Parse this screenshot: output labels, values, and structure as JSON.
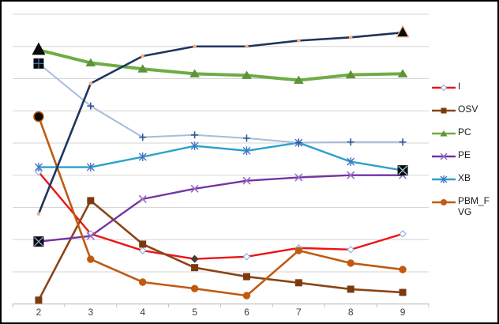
{
  "figure": {
    "background": "#FFFFFF",
    "border_color": "#000000"
  },
  "chart_data": {
    "type": "line",
    "title": "",
    "xlabel": "",
    "ylabel": "",
    "x": [
      2,
      3,
      4,
      5,
      6,
      7,
      8,
      9
    ],
    "x_tick_labels": [
      "2",
      "3",
      "4",
      "5",
      "6",
      "7",
      "8",
      "9"
    ],
    "ylim": [
      0,
      9
    ],
    "y_axis_labels_visible": false,
    "grid": true,
    "gridline_color": "#D6D6D6",
    "axis_color": "#BFBFBF",
    "tick_label_color": "#3F3F3F",
    "legend_position": "right",
    "legend_text_color": "#1A1A1A",
    "series": [
      {
        "name": "I",
        "color": "#ED1414",
        "width": 2.4,
        "marker": "diamond-open",
        "marker_color": "#8FAADC",
        "values": [
          4.1,
          2.18,
          1.66,
          1.4,
          1.47,
          1.74,
          1.69,
          2.18
        ]
      },
      {
        "name": "OSV",
        "color": "#8A4517",
        "width": 2.6,
        "marker": "square",
        "marker_color": "#7B3A0E",
        "values": [
          0.12,
          3.21,
          1.86,
          1.13,
          0.85,
          0.66,
          0.46,
          0.36
        ]
      },
      {
        "name": "PC",
        "color": "#6FAC46",
        "width": 4.0,
        "marker": "triangle",
        "marker_color": "#5E9438",
        "values": [
          7.89,
          7.49,
          7.3,
          7.15,
          7.1,
          6.95,
          7.12,
          7.15
        ]
      },
      {
        "name": "PE",
        "color": "#7434A4",
        "width": 2.4,
        "marker": "x",
        "marker_color": "#9A6DC0",
        "values": [
          1.94,
          2.11,
          3.26,
          3.58,
          3.83,
          3.93,
          4.0,
          4.0
        ]
      },
      {
        "name": "XB",
        "color": "#2BA0CC",
        "width": 2.4,
        "marker": "star",
        "marker_color": "#4472C4",
        "values": [
          4.25,
          4.25,
          4.57,
          4.91,
          4.76,
          5.01,
          4.42,
          4.15
        ]
      },
      {
        "name": "PBM_FVG",
        "color": "#C05A11",
        "width": 2.6,
        "marker": "circle",
        "marker_color": "#C05A11",
        "values": [
          5.82,
          1.39,
          0.68,
          0.48,
          0.26,
          1.66,
          1.27,
          1.07
        ]
      },
      {
        "name": "(unlabeled light blue)",
        "in_legend": false,
        "color": "#A6BDDC",
        "width": 2.0,
        "marker": "plus",
        "marker_color": "#2E5596",
        "values": [
          7.47,
          6.15,
          5.18,
          5.25,
          5.15,
          5.01,
          5.03,
          5.03
        ]
      },
      {
        "name": "(unlabeled navy)",
        "in_legend": false,
        "color": "#1E355E",
        "width": 2.6,
        "marker": "dot",
        "marker_color": "#F4B183",
        "values": [
          2.8,
          6.85,
          7.7,
          8.0,
          8.0,
          8.18,
          8.28,
          8.43
        ]
      }
    ],
    "special_markers": [
      {
        "series_index": 2,
        "point_index": 0,
        "shape": "triangle",
        "fill": "#0A0A0A",
        "size": 15
      },
      {
        "series_index": 6,
        "point_index": 0,
        "shape": "square-cross",
        "fill": "#0A0A0A",
        "accent": "#4472C4",
        "size": 13
      },
      {
        "series_index": 5,
        "point_index": 0,
        "shape": "circle",
        "fill": "#0A0A0A",
        "stroke": "#B55309",
        "size": 12
      },
      {
        "series_index": 3,
        "point_index": 0,
        "shape": "square-x",
        "fill": "#0A0A0A",
        "accent": "#8FAADC",
        "size": 13
      },
      {
        "series_index": 7,
        "point_index": 7,
        "shape": "triangle",
        "fill": "#0A0A0A",
        "stroke": "#F4B183",
        "size": 15
      },
      {
        "series_index": 4,
        "point_index": 7,
        "shape": "square-x",
        "fill": "#0A0A0A",
        "accent": "#9CC3E5",
        "size": 13
      },
      {
        "series_index": 0,
        "point_index": 3,
        "shape": "diamond",
        "fill": "#4A3B35",
        "size": 10
      }
    ]
  }
}
